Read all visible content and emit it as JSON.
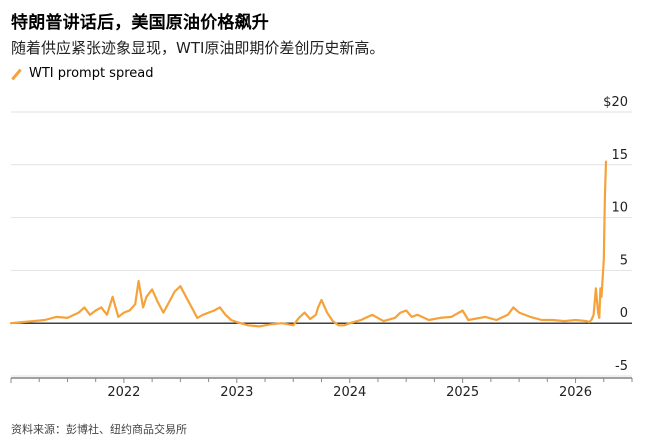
{
  "title": "特朗普讲话后，美国原油价格飙升",
  "subtitle": "随着供应紧张迹象显现，WTI原油即期价差创历史新高。",
  "legend": "WTI prompt spread",
  "source": "资料来源：彭博社、纽约商品交易所",
  "colors": {
    "series": "#F5A23A",
    "grid": "#e2e2e2",
    "zero": "#000000",
    "axis": "#666666"
  },
  "chart_data": {
    "type": "line",
    "title": "特朗普讲话后，美国原油价格飙升",
    "xlabel": "",
    "ylabel": "",
    "ylim": [
      -5,
      20
    ],
    "xlim": [
      2021.0,
      2026.5
    ],
    "y_ticks": [
      {
        "value": 20,
        "label": "$20"
      },
      {
        "value": 15,
        "label": "15"
      },
      {
        "value": 10,
        "label": "10"
      },
      {
        "value": 5,
        "label": "5"
      },
      {
        "value": 0,
        "label": "0"
      },
      {
        "value": -5,
        "label": "-5"
      }
    ],
    "x_ticks": [
      {
        "value": 2022,
        "label": "2022"
      },
      {
        "value": 2023,
        "label": "2023"
      },
      {
        "value": 2024,
        "label": "2024"
      },
      {
        "value": 2025,
        "label": "2025"
      },
      {
        "value": 2026,
        "label": "2026"
      }
    ],
    "series": [
      {
        "name": "WTI prompt spread",
        "x": [
          2021.0,
          2021.1,
          2021.2,
          2021.3,
          2021.4,
          2021.5,
          2021.6,
          2021.65,
          2021.7,
          2021.75,
          2021.8,
          2021.85,
          2021.9,
          2021.95,
          2022.0,
          2022.05,
          2022.1,
          2022.13,
          2022.17,
          2022.2,
          2022.25,
          2022.3,
          2022.35,
          2022.4,
          2022.45,
          2022.5,
          2022.55,
          2022.6,
          2022.65,
          2022.7,
          2022.75,
          2022.8,
          2022.85,
          2022.9,
          2022.95,
          2023.0,
          2023.1,
          2023.2,
          2023.3,
          2023.4,
          2023.5,
          2023.55,
          2023.6,
          2023.65,
          2023.7,
          2023.72,
          2023.75,
          2023.8,
          2023.85,
          2023.9,
          2023.95,
          2024.0,
          2024.1,
          2024.2,
          2024.3,
          2024.4,
          2024.45,
          2024.5,
          2024.55,
          2024.6,
          2024.7,
          2024.8,
          2024.9,
          2025.0,
          2025.05,
          2025.1,
          2025.2,
          2025.3,
          2025.4,
          2025.45,
          2025.5,
          2025.6,
          2025.7,
          2025.8,
          2025.9,
          2026.0,
          2026.1,
          2026.12,
          2026.14,
          2026.16,
          2026.18,
          2026.2,
          2026.21,
          2026.22,
          2026.23,
          2026.25,
          2026.26,
          2026.27
        ],
        "values": [
          0.0,
          0.1,
          0.2,
          0.3,
          0.6,
          0.5,
          1.0,
          1.5,
          0.8,
          1.2,
          1.5,
          0.8,
          2.5,
          0.6,
          1.0,
          1.2,
          1.8,
          4.0,
          1.5,
          2.5,
          3.2,
          2.0,
          1.0,
          2.0,
          3.0,
          3.5,
          2.5,
          1.5,
          0.5,
          0.8,
          1.0,
          1.2,
          1.5,
          0.8,
          0.3,
          0.1,
          -0.2,
          -0.3,
          -0.1,
          0.0,
          -0.2,
          0.5,
          1.0,
          0.4,
          0.8,
          1.5,
          2.2,
          1.0,
          0.2,
          -0.2,
          -0.2,
          0.0,
          0.3,
          0.8,
          0.2,
          0.5,
          1.0,
          1.2,
          0.6,
          0.8,
          0.3,
          0.5,
          0.6,
          1.2,
          0.3,
          0.4,
          0.6,
          0.3,
          0.8,
          1.5,
          1.0,
          0.6,
          0.3,
          0.3,
          0.2,
          0.3,
          0.2,
          0.1,
          0.3,
          0.8,
          3.3,
          1.0,
          0.5,
          3.3,
          2.5,
          6.0,
          12.0,
          15.3
        ]
      }
    ]
  }
}
